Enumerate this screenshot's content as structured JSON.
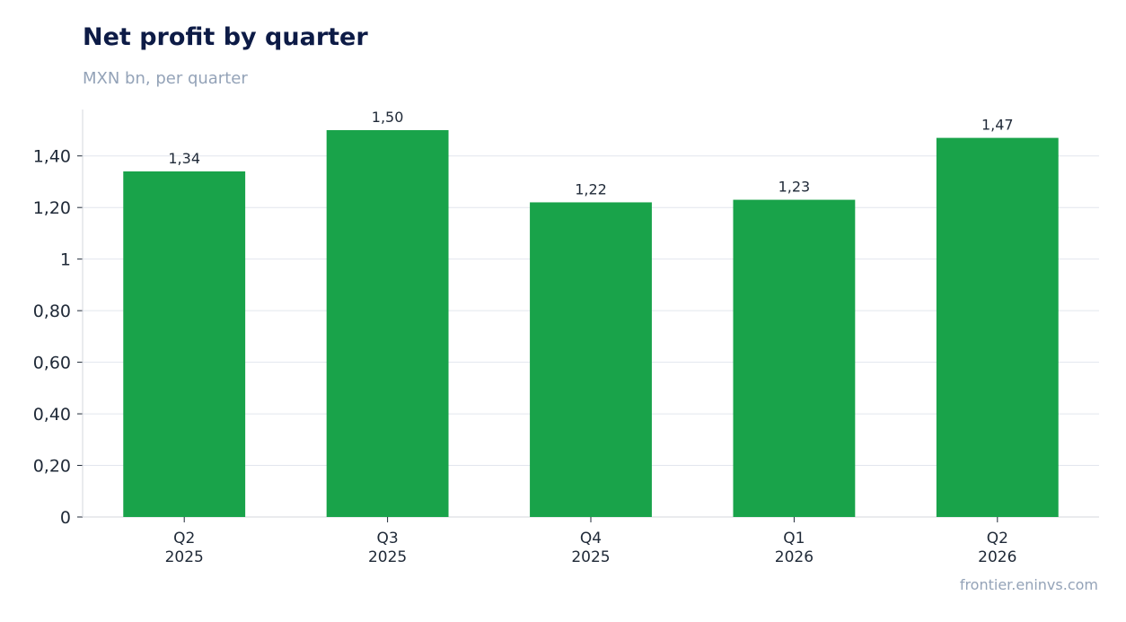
{
  "header": {
    "title": "Net profit by quarter",
    "subtitle": "MXN bn, per quarter"
  },
  "footer": {
    "source": "frontier.eninvs.com"
  },
  "colors": {
    "bar": "#19a34a",
    "grid": "#e2e6ee",
    "axis": "#d4d7dd",
    "text": "#1f2937",
    "title": "#0d1b46",
    "muted": "#94a3b8"
  },
  "chart_data": {
    "type": "bar",
    "categories": [
      [
        "Q2",
        "2025"
      ],
      [
        "Q3",
        "2025"
      ],
      [
        "Q4",
        "2025"
      ],
      [
        "Q1",
        "2026"
      ],
      [
        "Q2",
        "2026"
      ]
    ],
    "values": [
      1.34,
      1.5,
      1.22,
      1.23,
      1.47
    ],
    "value_labels": [
      "1,34",
      "1,50",
      "1,22",
      "1,23",
      "1,47"
    ],
    "yticks": [
      0,
      0.2,
      0.4,
      0.6,
      0.8,
      1,
      1.2,
      1.4
    ],
    "ytick_labels": [
      "0",
      "0,20",
      "0,40",
      "0,60",
      "0,80",
      "1",
      "1,20",
      "1,40"
    ],
    "ylim": [
      0,
      1.58
    ],
    "grid": true,
    "legend": "none"
  }
}
